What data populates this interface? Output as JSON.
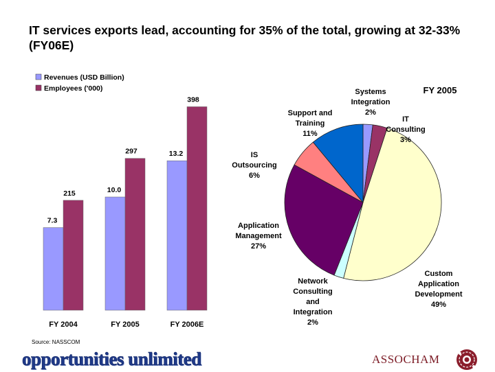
{
  "title": "IT services exports lead, accounting for 35% of the total, growing at 32-33% (FY06E)",
  "source": "Source: NASSCOM",
  "tagline": "opportunities unlimited",
  "brand": "ASSOCHAM",
  "colors": {
    "revenue": "#9999ff",
    "employees": "#993366",
    "brand": "#7b1a24"
  },
  "chart_data": [
    {
      "type": "bar",
      "categories": [
        "FY 2004",
        "FY 2005",
        "FY 2006E"
      ],
      "series": [
        {
          "name": "Revenues (USD Billion)",
          "values": [
            7.3,
            10.0,
            13.2
          ],
          "labels": [
            "7.3",
            "10.0",
            "13.2"
          ],
          "color": "#9999ff"
        },
        {
          "name": "Employees ('000)",
          "values": [
            215,
            297,
            398
          ],
          "labels": [
            "215",
            "297",
            "398"
          ],
          "color": "#993366"
        }
      ],
      "legend": "top-left",
      "grid": false
    },
    {
      "type": "pie",
      "title": "FY 2005",
      "slices": [
        {
          "label": "Systems Integration",
          "value": 2,
          "pct": "2%",
          "color": "#9999ff"
        },
        {
          "label": "IT Consulting",
          "value": 3,
          "pct": "3%",
          "color": "#993366"
        },
        {
          "label": "Custom Application Development",
          "value": 49,
          "pct": "49%",
          "color": "#ffffcc"
        },
        {
          "label": "Network Consulting and Integration",
          "value": 2,
          "pct": "2%",
          "color": "#ccffff"
        },
        {
          "label": "Application Management",
          "value": 27,
          "pct": "27%",
          "color": "#660066"
        },
        {
          "label": "IS Outsourcing",
          "value": 6,
          "pct": "6%",
          "color": "#ff8080"
        },
        {
          "label": "Support and Training",
          "value": 11,
          "pct": "11%",
          "color": "#0066cc"
        }
      ]
    }
  ]
}
